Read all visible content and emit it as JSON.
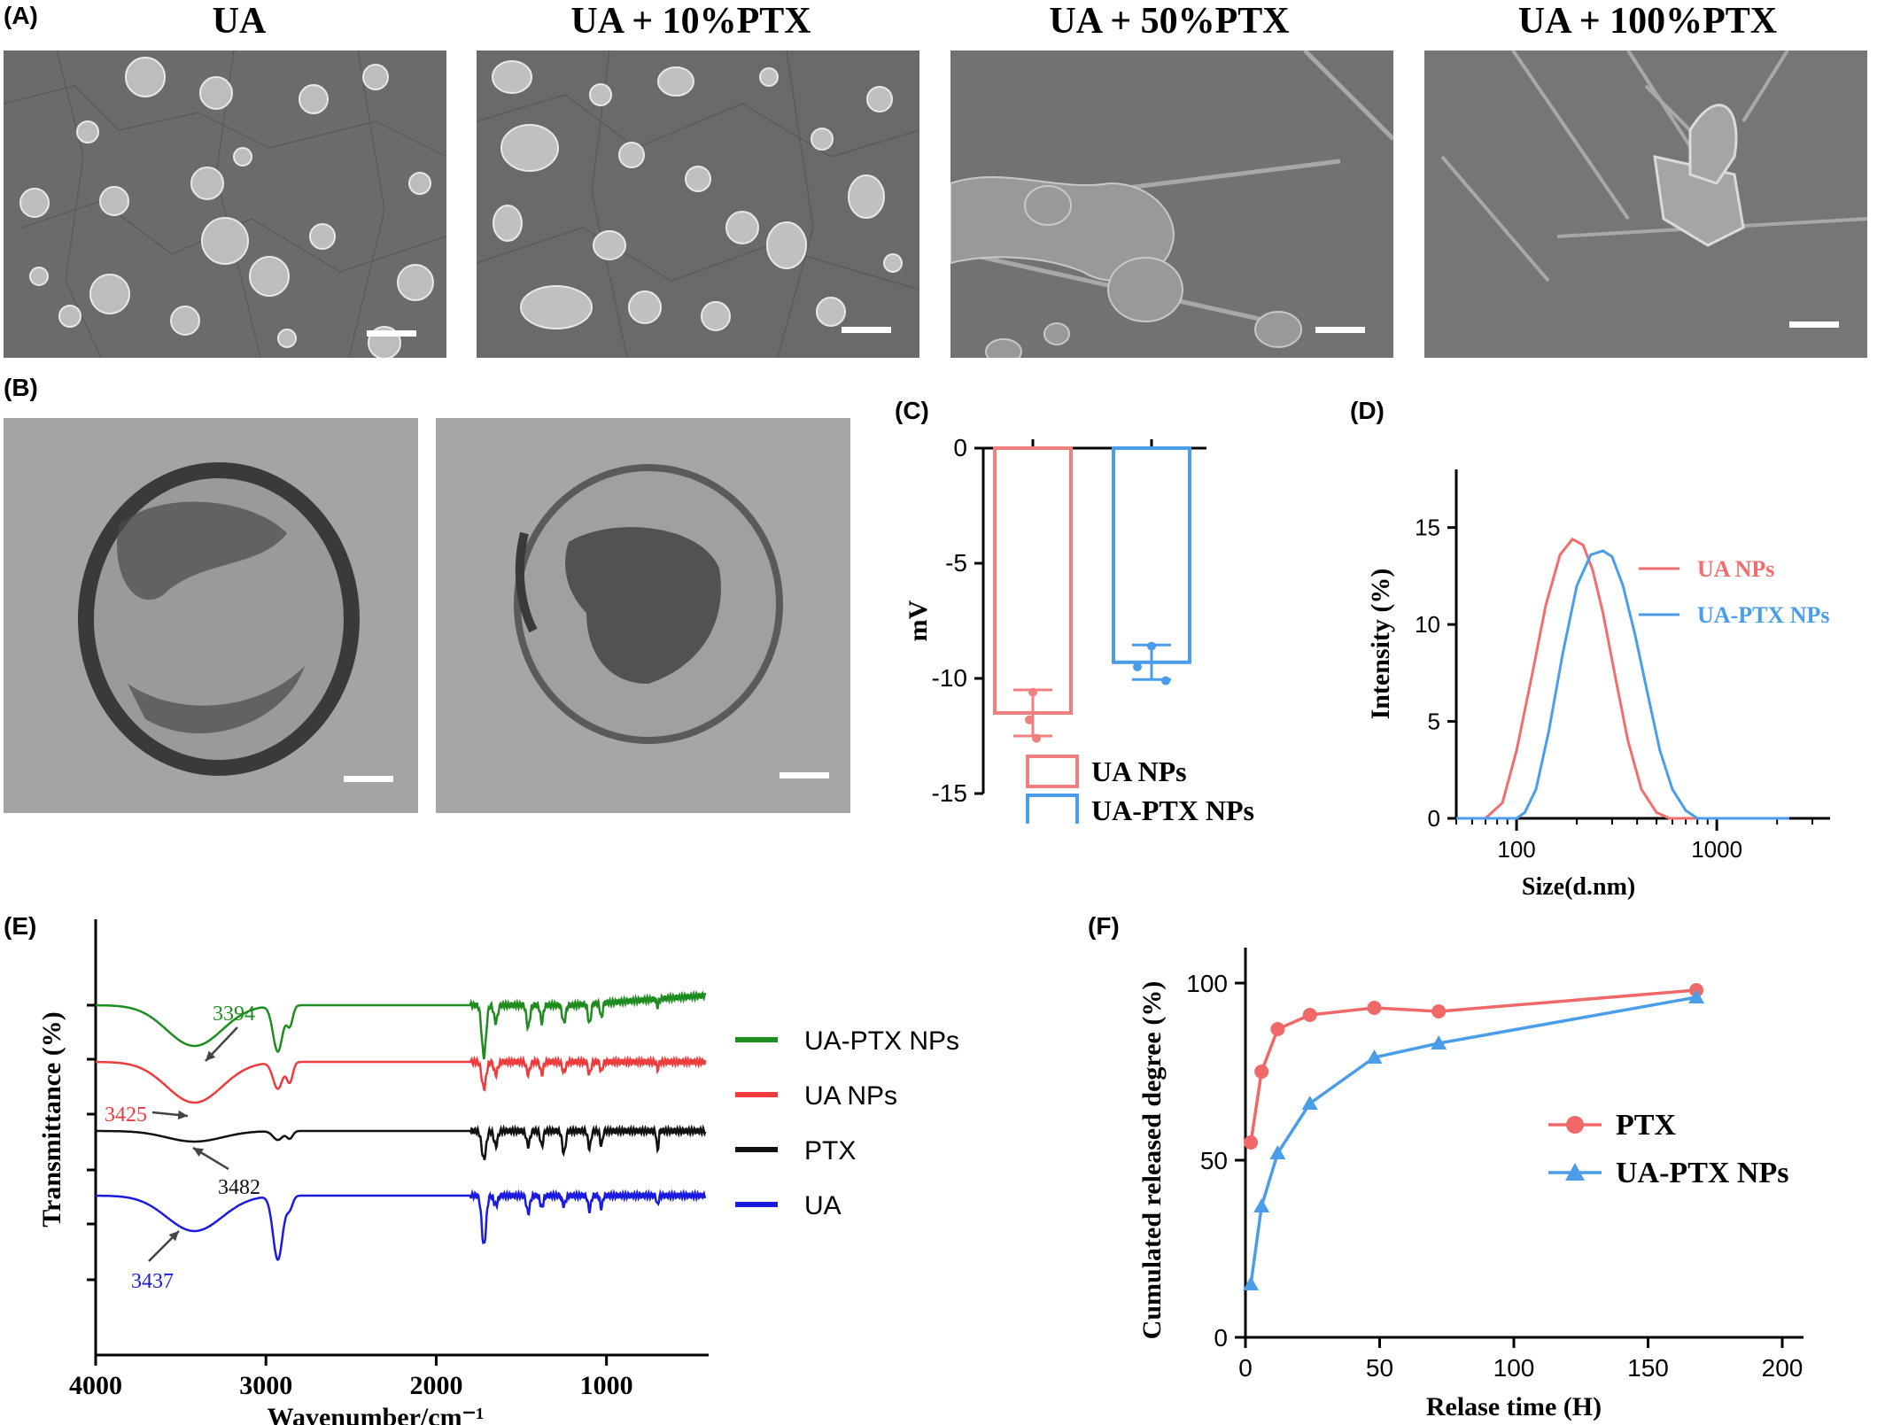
{
  "panels": {
    "A": "(A)",
    "B": "(B)",
    "C": "(C)",
    "D": "(D)",
    "E": "(E)",
    "F": "(F)"
  },
  "sem": {
    "titles": [
      "UA",
      "UA + 10%PTX",
      "UA + 50%PTX",
      "UA + 100%PTX"
    ]
  },
  "chart_data": [
    {
      "id": "C",
      "type": "bar",
      "categories": [
        "UA NPs",
        "UA-PTX NPs"
      ],
      "values": [
        -11.5,
        -9.3
      ],
      "error": [
        1.0,
        0.75
      ],
      "points": [
        [
          -10.6,
          -11.8,
          -12.6
        ],
        [
          -8.6,
          -9.5,
          -10.1
        ]
      ],
      "ylabel": "mV",
      "ylim": [
        -15,
        0
      ],
      "yticks": [
        0,
        -5,
        -10,
        -15
      ],
      "legend": [
        "UA NPs",
        "UA-PTX NPs"
      ],
      "legend_position": "bottom",
      "colors": [
        "#f08080",
        "#4a9de8"
      ]
    },
    {
      "id": "D",
      "type": "line",
      "xlabel": "Size(d.nm)",
      "ylabel": "Intensity (%)",
      "xscale": "log",
      "xticks": [
        100,
        1000
      ],
      "yticks": [
        0,
        5,
        10,
        15
      ],
      "ylim": [
        0,
        18
      ],
      "xlim": [
        50,
        3000
      ],
      "series": [
        {
          "name": "UA NPs",
          "color": "#f26d6d",
          "x": [
            50,
            70,
            85,
            100,
            120,
            140,
            165,
            190,
            215,
            240,
            270,
            310,
            360,
            420,
            500,
            580,
            700,
            2300
          ],
          "y": [
            0,
            0,
            0.8,
            3.5,
            7.5,
            11.0,
            13.6,
            14.4,
            14.1,
            12.8,
            10.6,
            7.4,
            4.0,
            1.5,
            0.3,
            0,
            0,
            0
          ]
        },
        {
          "name": "UA-PTX NPs",
          "color": "#4a9de8",
          "x": [
            50,
            100,
            110,
            125,
            145,
            170,
            200,
            235,
            270,
            300,
            340,
            390,
            450,
            520,
            600,
            700,
            800,
            2300
          ],
          "y": [
            0,
            0,
            0.3,
            1.5,
            4.5,
            8.5,
            12.0,
            13.6,
            13.8,
            13.5,
            12.0,
            9.5,
            6.5,
            3.5,
            1.5,
            0.4,
            0,
            0
          ]
        }
      ],
      "legend_position": "right"
    },
    {
      "id": "E",
      "type": "line",
      "xlabel": "Wavenumber/cm⁻¹",
      "ylabel": "Transmittance (%)",
      "xlim": [
        4000,
        400
      ],
      "xticks": [
        4000,
        3000,
        2000,
        1000
      ],
      "series": [
        {
          "name": "UA-PTX NPs",
          "color": "#1e8c1e",
          "peak_label": "3394"
        },
        {
          "name": "UA NPs",
          "color": "#ee3b3b",
          "peak_label": "3425"
        },
        {
          "name": "PTX",
          "color": "#111111",
          "peak_label": "3482"
        },
        {
          "name": "UA",
          "color": "#1a1ae0",
          "peak_label": "3437"
        }
      ],
      "legend_position": "right"
    },
    {
      "id": "F",
      "type": "line",
      "xlabel": "Relase time (H)",
      "ylabel": "Cumulated released degree (%)",
      "xlim": [
        0,
        200
      ],
      "ylim": [
        0,
        110
      ],
      "xticks": [
        0,
        50,
        100,
        150,
        200
      ],
      "yticks": [
        0,
        50,
        100
      ],
      "series": [
        {
          "name": "PTX",
          "color": "#f06868",
          "marker": "circle",
          "x": [
            2,
            6,
            12,
            24,
            48,
            72,
            168
          ],
          "y": [
            55,
            75,
            87,
            91,
            93,
            92,
            98
          ]
        },
        {
          "name": "UA-PTX NPs",
          "color": "#4a9de8",
          "marker": "triangle",
          "x": [
            2,
            6,
            12,
            24,
            48,
            72,
            168
          ],
          "y": [
            15,
            37,
            52,
            66,
            79,
            83,
            96
          ]
        }
      ],
      "legend_position": "right"
    }
  ]
}
